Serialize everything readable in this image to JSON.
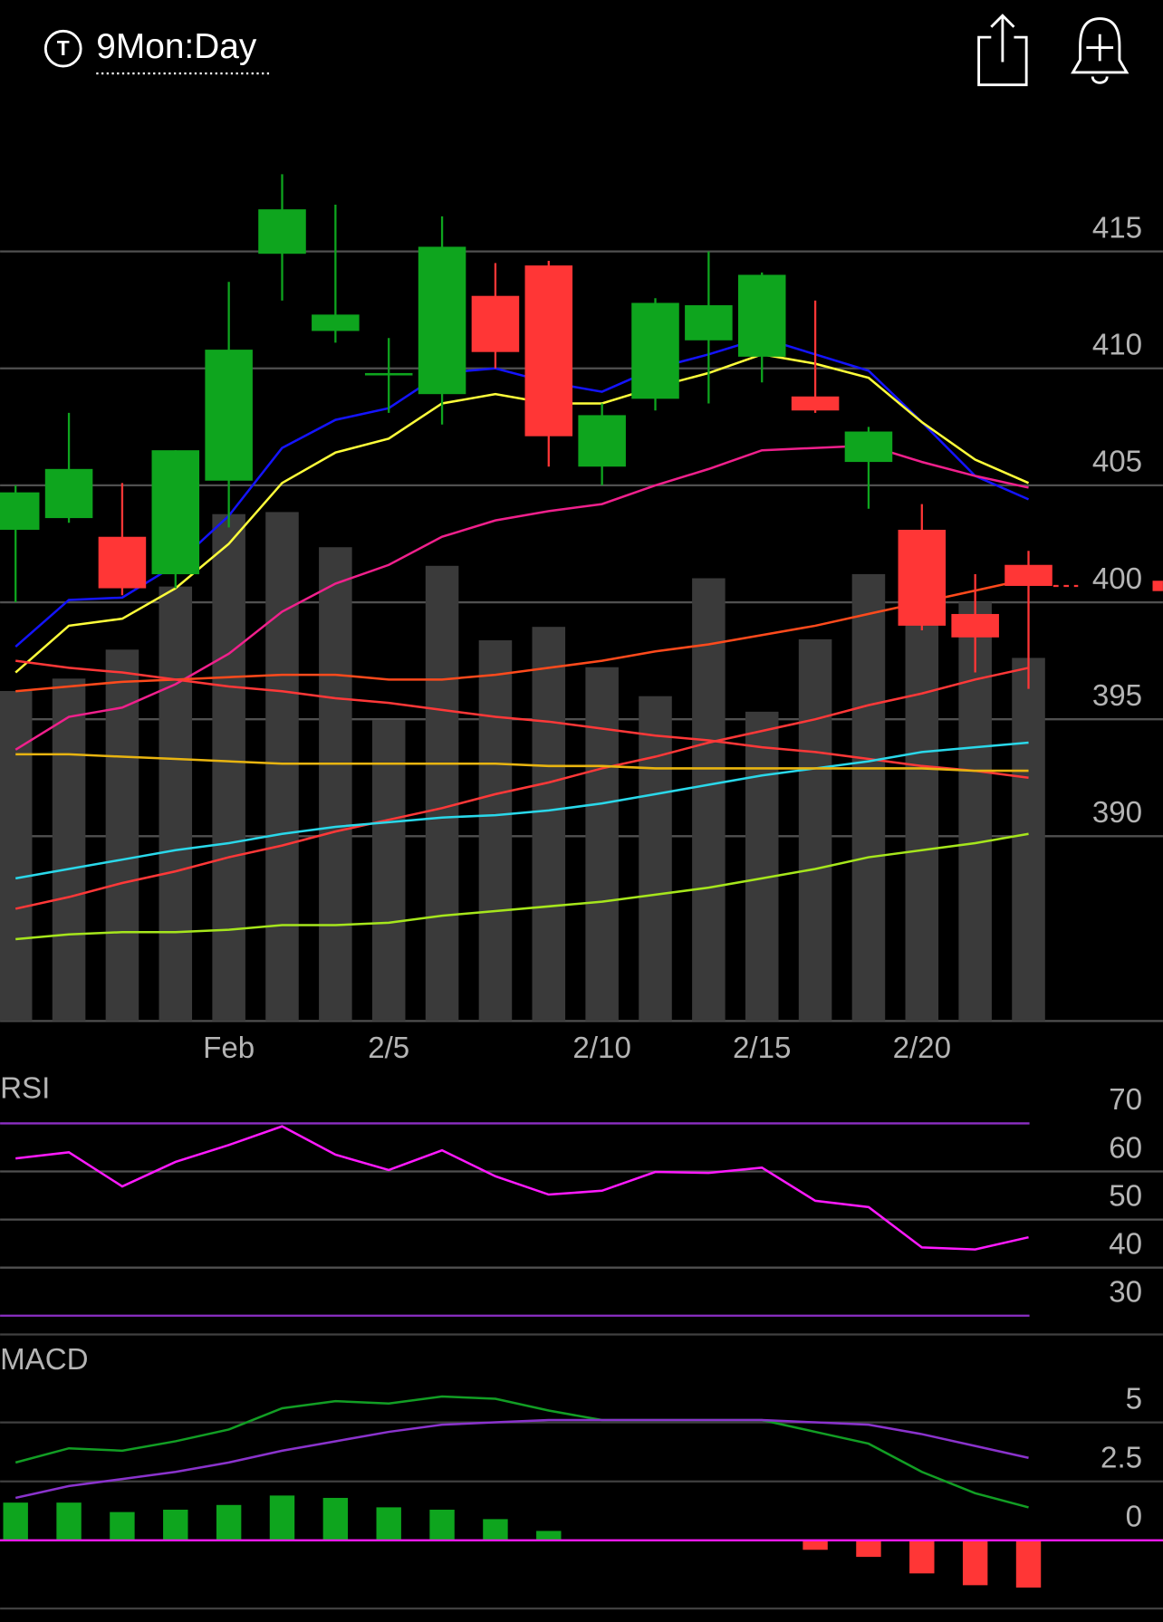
{
  "header": {
    "icon": "T",
    "title": "9Mon:Day"
  },
  "chart_data": [
    {
      "type": "candlestick",
      "categories": [
        null,
        null,
        null,
        null,
        "Feb",
        null,
        null,
        "2/5",
        null,
        null,
        null,
        "2/10",
        null,
        null,
        "2/15",
        null,
        null,
        "2/20",
        null,
        null
      ],
      "open": [
        403.1,
        403.6,
        402.8,
        401.2,
        405.2,
        414.9,
        411.6,
        409.7,
        408.9,
        413.1,
        414.4,
        405.8,
        408.7,
        411.2,
        410.5,
        408.8,
        406.0,
        403.1,
        399.5,
        401.6
      ],
      "high": [
        405.0,
        408.1,
        405.1,
        406.5,
        413.7,
        418.3,
        417.0,
        411.3,
        416.5,
        414.5,
        414.6,
        408.5,
        413.0,
        415.0,
        414.1,
        412.9,
        407.5,
        404.2,
        401.2,
        402.2
      ],
      "low": [
        400.0,
        403.4,
        400.3,
        400.6,
        403.2,
        412.9,
        411.1,
        408.1,
        407.6,
        410.0,
        405.8,
        405.0,
        408.2,
        408.5,
        409.4,
        408.1,
        404.0,
        398.8,
        397.0,
        396.3
      ],
      "close": [
        404.7,
        405.7,
        400.6,
        406.5,
        410.8,
        416.8,
        412.3,
        409.8,
        415.2,
        410.7,
        407.1,
        408.0,
        412.8,
        412.7,
        414.0,
        408.2,
        407.3,
        399.0,
        398.5,
        400.7
      ],
      "up_color": "#0ea51e",
      "down_color": "#ff3636",
      "volume": [
        31.9,
        33.1,
        35.9,
        42.0,
        49.0,
        49.2,
        45.8,
        29.1,
        44.0,
        36.8,
        38.1,
        34.2,
        31.4,
        42.8,
        29.9,
        36.9,
        43.2,
        38.7,
        40.5,
        35.1
      ],
      "volume_color": "#3a3a3a",
      "volume_lim": [
        0,
        85.7
      ],
      "ylim": [
        382.1,
        420.0
      ],
      "yticks": [
        390,
        395,
        400,
        405,
        410,
        415
      ],
      "grid": true,
      "series": [
        {
          "color": "#1414ff",
          "values": [
            398.1,
            400.1,
            400.2,
            401.6,
            403.7,
            406.6,
            407.8,
            408.3,
            409.8,
            410.0,
            409.4,
            409.0,
            410.0,
            410.6,
            411.3,
            410.6,
            409.9,
            407.7,
            405.4,
            404.4
          ]
        },
        {
          "color": "#ffff3a",
          "values": [
            397.0,
            399.0,
            399.3,
            400.6,
            402.5,
            405.1,
            406.4,
            407.0,
            408.5,
            408.9,
            408.5,
            408.5,
            409.2,
            409.8,
            410.6,
            410.2,
            409.6,
            407.7,
            406.1,
            405.1
          ]
        },
        {
          "color": "#f0208c",
          "values": [
            393.7,
            395.1,
            395.5,
            396.5,
            397.8,
            399.6,
            400.8,
            401.6,
            402.8,
            403.5,
            403.9,
            404.2,
            405.0,
            405.7,
            406.5,
            406.6,
            406.7,
            406.0,
            405.4,
            404.9
          ]
        },
        {
          "color": "#ff4a1c",
          "values": [
            396.2,
            396.4,
            396.6,
            396.7,
            396.8,
            396.9,
            396.9,
            396.7,
            396.7,
            396.9,
            397.2,
            397.5,
            397.9,
            398.2,
            398.6,
            399.0,
            399.5,
            400.0,
            400.5,
            401.0
          ]
        },
        {
          "color": "#ff3838",
          "values": [
            397.5,
            397.2,
            397.0,
            396.7,
            396.4,
            396.2,
            395.9,
            395.7,
            395.4,
            395.1,
            394.9,
            394.6,
            394.3,
            394.1,
            393.8,
            393.6,
            393.3,
            393.0,
            392.8,
            392.5
          ]
        },
        {
          "color": "#ff3838",
          "values": [
            386.9,
            387.4,
            388.0,
            388.5,
            389.1,
            389.6,
            390.2,
            390.7,
            391.2,
            391.8,
            392.3,
            392.9,
            393.4,
            394.0,
            394.5,
            395.0,
            395.6,
            396.1,
            396.7,
            397.2
          ]
        },
        {
          "color": "#2ad8ea",
          "values": [
            388.2,
            388.6,
            389.0,
            389.4,
            389.7,
            390.1,
            390.4,
            390.6,
            390.8,
            390.9,
            391.1,
            391.4,
            391.8,
            392.2,
            392.6,
            392.9,
            393.2,
            393.6,
            393.8,
            394.0
          ]
        },
        {
          "color": "#e8b410",
          "values": [
            393.5,
            393.5,
            393.4,
            393.3,
            393.2,
            393.1,
            393.1,
            393.1,
            393.1,
            393.1,
            393.0,
            393.0,
            392.9,
            392.9,
            392.9,
            392.9,
            392.9,
            392.9,
            392.8,
            392.8
          ]
        },
        {
          "color": "#a6e61c",
          "values": [
            385.6,
            385.8,
            385.9,
            385.9,
            386.0,
            386.2,
            386.2,
            386.3,
            386.6,
            386.8,
            387.0,
            387.2,
            387.5,
            387.8,
            388.2,
            388.6,
            389.1,
            389.4,
            389.7,
            390.1
          ]
        }
      ]
    },
    {
      "type": "line",
      "title": "RSI",
      "ylim": [
        26.1,
        79.9
      ],
      "yticks": [
        70,
        60,
        50,
        40,
        30
      ],
      "grid": true,
      "bound_color": "#8c2fc4",
      "series": [
        {
          "color": "#ff1aff",
          "values": [
            62.7,
            64.0,
            56.9,
            62.0,
            65.5,
            69.4,
            63.5,
            60.3,
            64.4,
            59.0,
            55.2,
            56.0,
            59.9,
            59.7,
            60.8,
            53.9,
            52.6,
            44.2,
            43.8,
            46.3
          ]
        }
      ]
    },
    {
      "type": "macd",
      "title": "MACD",
      "ylim": [
        -2.89,
        8.29
      ],
      "yticks": [
        5,
        2.5,
        0
      ],
      "grid": true,
      "zero_color": "#ff1aff",
      "series": [
        {
          "color": "#129e24",
          "values": [
            3.3,
            3.9,
            3.8,
            4.2,
            4.7,
            5.6,
            5.9,
            5.8,
            6.1,
            6.0,
            5.5,
            5.1,
            5.1,
            5.1,
            5.1,
            4.6,
            4.1,
            2.9,
            2.0,
            1.4
          ]
        },
        {
          "color": "#8a33cc",
          "values": [
            1.8,
            2.3,
            2.6,
            2.9,
            3.3,
            3.8,
            4.2,
            4.6,
            4.9,
            5.0,
            5.1,
            5.1,
            5.1,
            5.1,
            5.1,
            5.0,
            4.9,
            4.5,
            4.0,
            3.5
          ]
        }
      ],
      "histogram": {
        "values": [
          1.6,
          1.6,
          1.2,
          1.3,
          1.5,
          1.9,
          1.8,
          1.4,
          1.3,
          0.9,
          0.4,
          0,
          0,
          0,
          0,
          -0.4,
          -0.7,
          -1.4,
          -1.9,
          -2.0
        ],
        "up_color": "#0ea51e",
        "down_color": "#ff3636"
      }
    }
  ]
}
